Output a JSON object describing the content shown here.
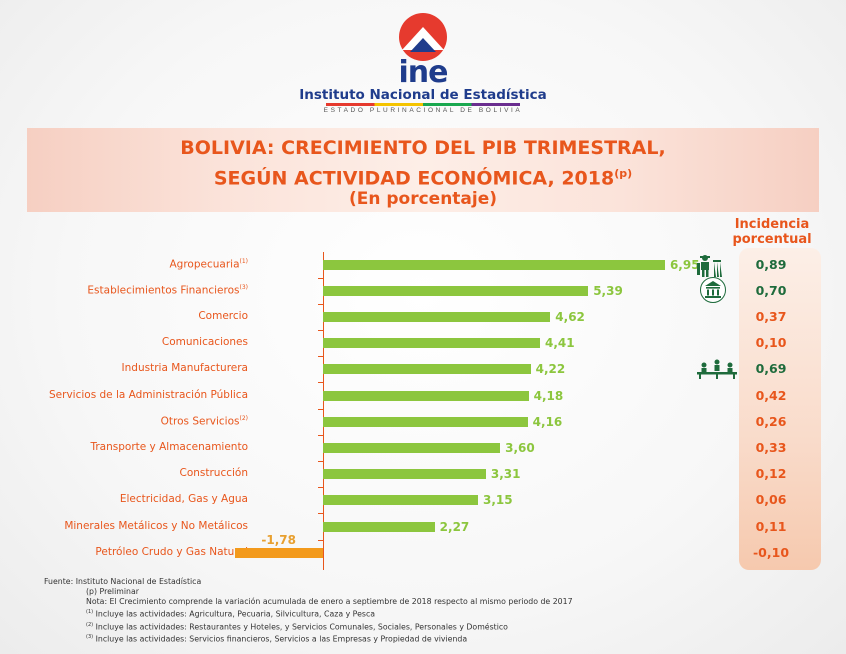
{
  "header": {
    "logo_text": "ine",
    "institute_name": "Instituto Nacional de Estadística",
    "institute_subtitle": "ESTADO PLURINACIONAL DE BOLIVIA"
  },
  "title": {
    "line1": "BOLIVIA: CRECIMIENTO DEL PIB TRIMESTRAL,",
    "line2": "SEGÚN ACTIVIDAD ECONÓMICA, 2018",
    "line2_sup": "(p)",
    "line3": "(En porcentaje)"
  },
  "incidence_title": "Incidencia porcentual",
  "chart_data": {
    "type": "bar",
    "orientation": "horizontal",
    "title": "BOLIVIA: CRECIMIENTO DEL PIB TRIMESTRAL, SEGÚN ACTIVIDAD ECONÓMICA, 2018(p) (En porcentaje)",
    "xlim": [
      -2,
      7.5
    ],
    "categories": [
      {
        "label": "Agropecuaria",
        "sup": "(1)"
      },
      {
        "label": "Establecimientos Financieros",
        "sup": "(3)"
      },
      {
        "label": "Comercio",
        "sup": ""
      },
      {
        "label": "Comunicaciones",
        "sup": ""
      },
      {
        "label": "Industria Manufacturera",
        "sup": ""
      },
      {
        "label": "Servicios de la Administración Pública",
        "sup": ""
      },
      {
        "label": "Otros Servicios",
        "sup": "(2)"
      },
      {
        "label": "Transporte y Almacenamiento",
        "sup": ""
      },
      {
        "label": "Construcción",
        "sup": ""
      },
      {
        "label": "Electricidad, Gas y Agua",
        "sup": ""
      },
      {
        "label": "Minerales Metálicos y No Metálicos",
        "sup": ""
      },
      {
        "label": "Petróleo Crudo y Gas Natural",
        "sup": ""
      }
    ],
    "values": [
      6.95,
      5.39,
      4.62,
      4.41,
      4.22,
      4.18,
      4.16,
      3.6,
      3.31,
      3.15,
      2.27,
      -1.78
    ],
    "value_labels": [
      "6,95",
      "5,39",
      "4,62",
      "4,41",
      "4,22",
      "4,18",
      "4,16",
      "3,60",
      "3,31",
      "3,15",
      "2,27",
      "-1,78"
    ],
    "incidence": [
      "0,89",
      "0,70",
      "0,37",
      "0,10",
      "0,69",
      "0,42",
      "0,26",
      "0,33",
      "0,12",
      "0,06",
      "0,11",
      "-0,10"
    ],
    "highlighted": [
      0,
      1,
      4
    ],
    "icons": {
      "0": "farmer-icon",
      "1": "bank-icon",
      "4": "factory-workers-icon"
    }
  },
  "colors": {
    "accent": "#e8561c",
    "bar_positive": "#8cc63e",
    "bar_negative": "#f39a1c",
    "incidence_highlight": "#1e6b3c",
    "incidence_normal": "#e8561c",
    "icon": "#1e6b3c"
  },
  "footer": {
    "source": "Fuente: Instituto Nacional de Estadística",
    "preliminary": "(p) Preliminar",
    "note": "Nota: El Crecimiento  comprende la variación acumulada  de enero a septiembre de 2018 respecto al mismo periodo de 2017",
    "note1_sup": "(1)",
    "note1": "Incluye las actividades: Agricultura, Pecuaria, Silvicultura, Caza y Pesca",
    "note2_sup": "(2)",
    "note2": "Incluye las actividades: Restaurantes y Hoteles, y Servicios Comunales, Sociales, Personales y  Doméstico",
    "note3_sup": "(3)",
    "note3": "Incluye las actividades: Servicios financieros, Servicios a las Empresas y Propiedad de vivienda"
  }
}
